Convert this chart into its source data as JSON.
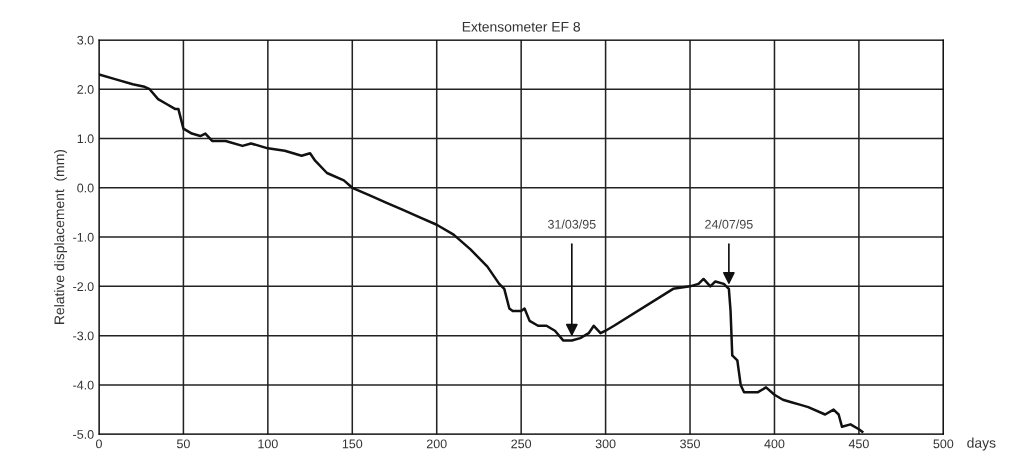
{
  "chart_data": {
    "type": "line",
    "title": "Extensometer EF 8",
    "xlabel": "days",
    "ylabel": "Relative displacement  (mm)",
    "x": [
      0,
      10,
      20,
      27,
      30,
      35,
      40,
      45,
      47,
      50,
      55,
      60,
      63,
      67,
      75,
      85,
      90,
      100,
      110,
      120,
      125,
      128,
      135,
      145,
      150,
      160,
      170,
      180,
      190,
      200,
      210,
      220,
      230,
      237,
      240,
      243,
      245,
      250,
      252,
      255,
      260,
      265,
      270,
      275,
      280,
      285,
      290,
      293,
      297,
      300,
      305,
      340,
      350,
      355,
      358,
      362,
      365,
      370,
      373,
      374,
      375,
      378,
      380,
      382,
      390,
      395,
      400,
      405,
      410,
      415,
      420,
      430,
      435,
      438,
      440,
      445,
      450,
      452
    ],
    "series": [
      {
        "color": "#111111",
        "values": [
          2.3,
          2.2,
          2.1,
          2.05,
          2.0,
          1.8,
          1.7,
          1.6,
          1.6,
          1.2,
          1.1,
          1.05,
          1.1,
          0.95,
          0.95,
          0.85,
          0.9,
          0.8,
          0.75,
          0.65,
          0.7,
          0.55,
          0.3,
          0.15,
          0.0,
          -0.15,
          -0.3,
          -0.45,
          -0.6,
          -0.75,
          -0.95,
          -1.25,
          -1.6,
          -1.95,
          -2.05,
          -2.45,
          -2.5,
          -2.5,
          -2.45,
          -2.7,
          -2.8,
          -2.8,
          -2.9,
          -3.1,
          -3.1,
          -3.05,
          -2.95,
          -2.8,
          -2.95,
          -2.9,
          -2.8,
          -2.05,
          -2.0,
          -1.95,
          -1.85,
          -2.0,
          -1.9,
          -1.95,
          -2.05,
          -2.5,
          -3.4,
          -3.5,
          -4.0,
          -4.15,
          -4.15,
          -4.05,
          -4.2,
          -4.3,
          -4.35,
          -4.4,
          -4.45,
          -4.6,
          -4.5,
          -4.6,
          -4.85,
          -4.8,
          -4.9,
          -4.95
        ]
      }
    ],
    "annotations": [
      {
        "text": "31/03/95",
        "x": 280,
        "y": -3.1
      },
      {
        "text": "24/07/95",
        "x": 373,
        "y": -2.05
      }
    ],
    "xlim": [
      0,
      500
    ],
    "xticks": [
      0,
      50,
      100,
      150,
      200,
      250,
      300,
      350,
      400,
      450,
      500
    ],
    "ylim": [
      -5,
      3
    ],
    "yticks": [
      {
        "value": 3,
        "label": "3.0"
      },
      {
        "value": 2,
        "label": "2.0"
      },
      {
        "value": 1,
        "label": "1.0"
      },
      {
        "value": 0,
        "label": "0.0"
      },
      {
        "value": -1,
        "label": "-1.0"
      },
      {
        "value": -2,
        "label": "-2.0"
      },
      {
        "value": -3,
        "label": "-3.0"
      },
      {
        "value": -4,
        "label": "-4.0"
      },
      {
        "value": -5,
        "label": "-5.0"
      }
    ],
    "grid": true,
    "marker": "none",
    "line_style": "solid"
  }
}
